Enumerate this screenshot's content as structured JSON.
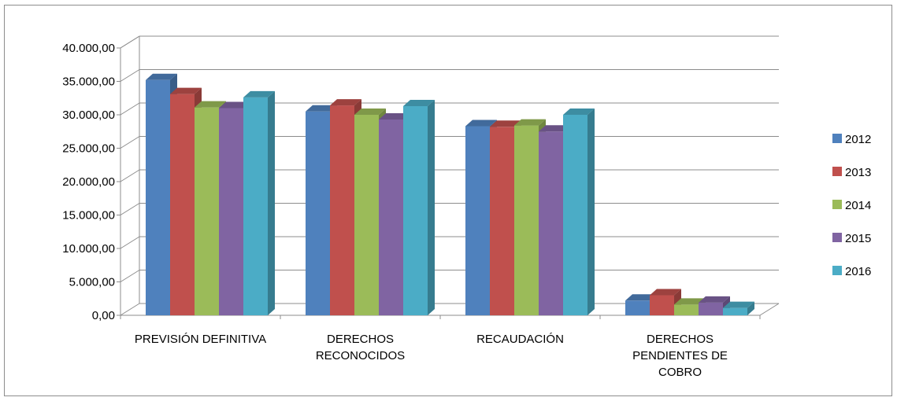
{
  "chart_data": {
    "type": "bar",
    "categories": [
      [
        "PREVISIÓN DEFINITIVA"
      ],
      [
        "DERECHOS",
        "RECONOCIDOS"
      ],
      [
        "RECAUDACIÓN"
      ],
      [
        "DERECHOS",
        "PENDIENTES DE",
        "COBRO"
      ]
    ],
    "series": [
      {
        "name": "2012",
        "color": "#4f81bd",
        "values": [
          35200,
          30500,
          28300,
          2200
        ]
      },
      {
        "name": "2013",
        "color": "#c0504d",
        "values": [
          33100,
          31400,
          28200,
          3000
        ]
      },
      {
        "name": "2014",
        "color": "#9bbb59",
        "values": [
          31100,
          30000,
          28400,
          1600
        ]
      },
      {
        "name": "2015",
        "color": "#8064a2",
        "values": [
          31000,
          29300,
          27500,
          1900
        ]
      },
      {
        "name": "2016",
        "color": "#4bacc6",
        "values": [
          32600,
          31300,
          30000,
          1100
        ]
      }
    ],
    "yticks": [
      "0,00",
      "5.000,00",
      "10.000,00",
      "15.000,00",
      "20.000,00",
      "25.000,00",
      "30.000,00",
      "35.000,00",
      "40.000,00"
    ],
    "ylim": [
      0,
      40000
    ],
    "grid": true,
    "legend_position": "right"
  }
}
